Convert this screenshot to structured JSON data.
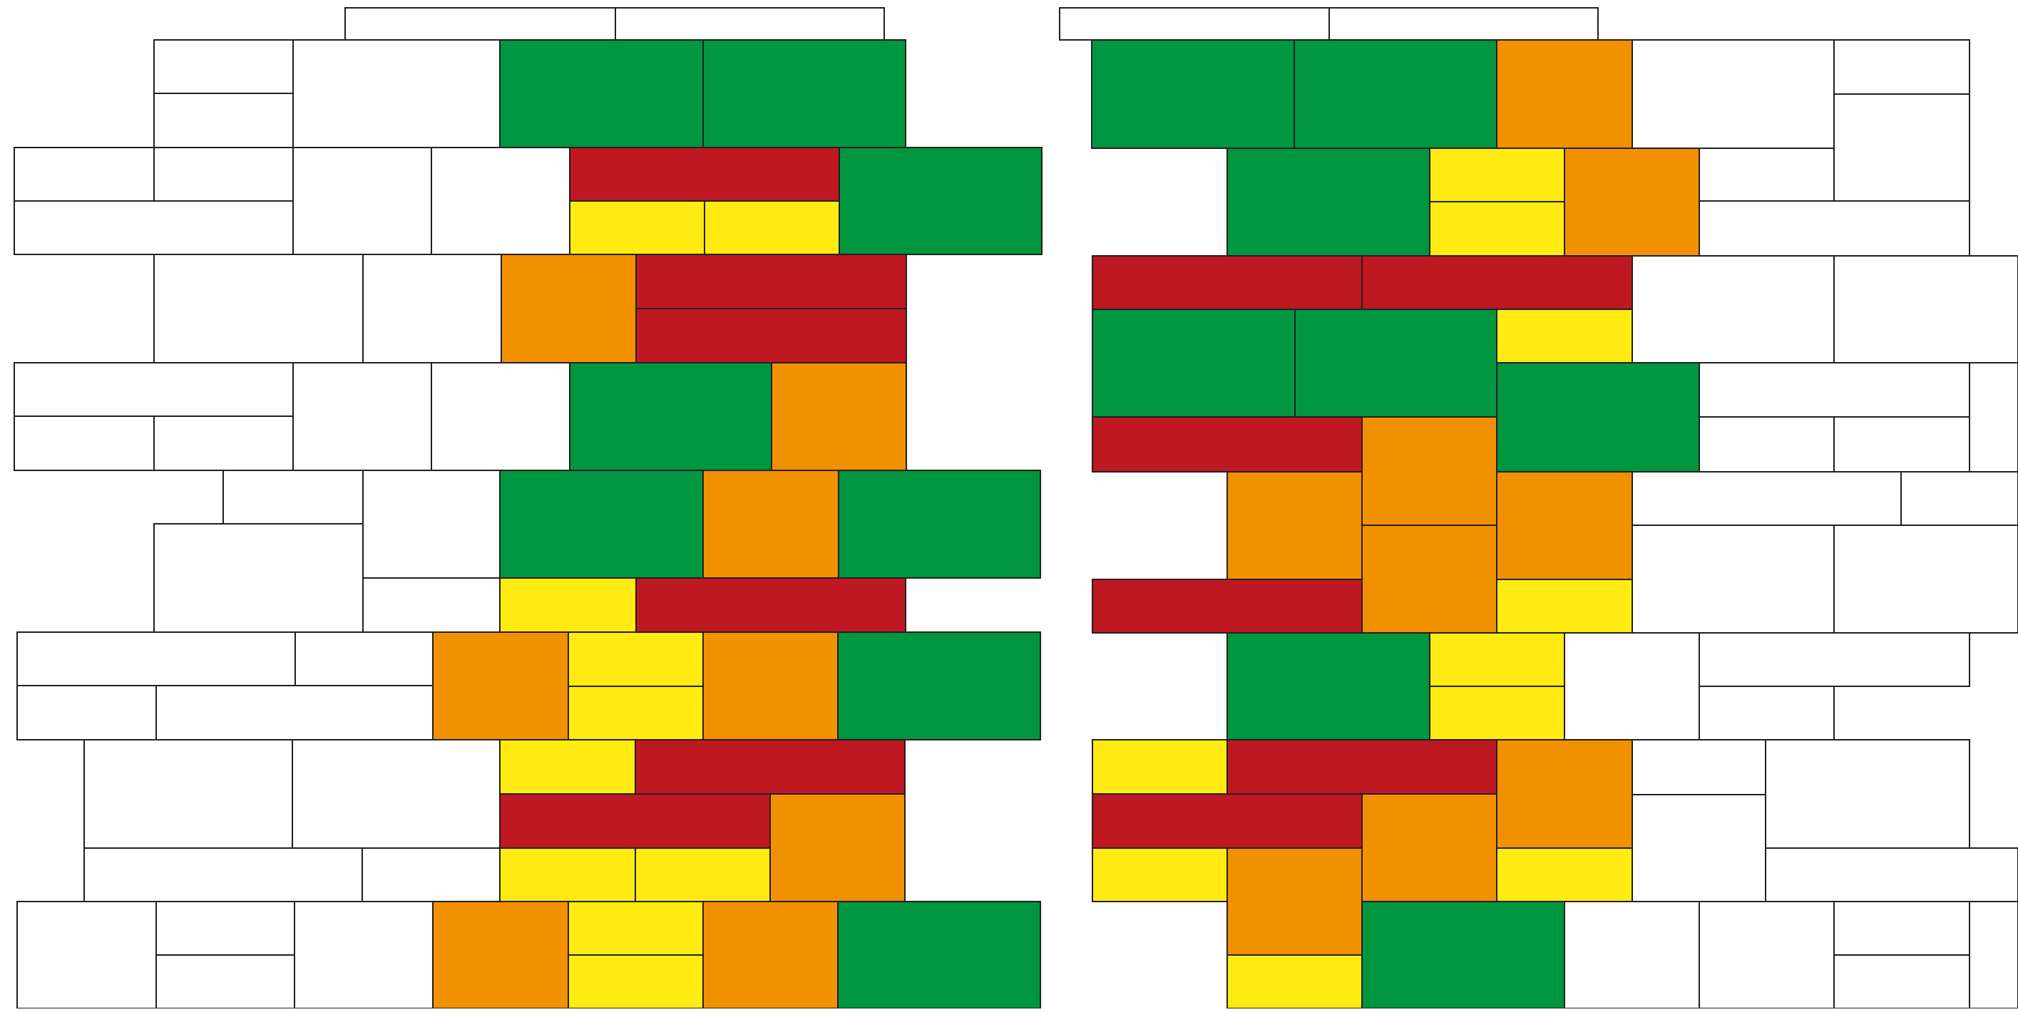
{
  "palette": {
    "green": "#00963f",
    "red": "#be1823",
    "yellow": "#ffeb11",
    "orange": "#f29100",
    "empty": "#ffffff",
    "outline": "#231f20"
  },
  "diagram": {
    "left_stack": {
      "G": "green",
      "R": "red",
      "Y": "yellow",
      "O": "orange",
      "W": "empty"
    }
  }
}
